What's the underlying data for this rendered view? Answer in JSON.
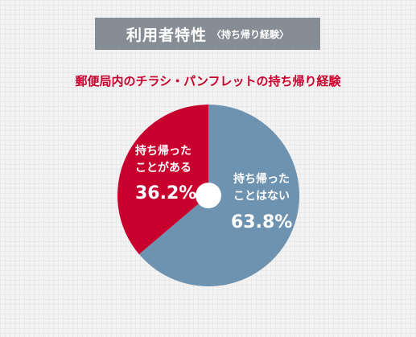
{
  "header": {
    "title": "利用者特性",
    "subtitle": "〈持ち帰り経験〉"
  },
  "chart_data": {
    "type": "pie",
    "title": "郵便局内のチラシ・パンフレットの持ち帰り経験",
    "categories": [
      "持ち帰った\nことはない",
      "持ち帰った\nことがある"
    ],
    "values": [
      63.8,
      36.2
    ],
    "value_labels": [
      "63.8%",
      "36.2%"
    ],
    "colors": [
      "#6d93b1",
      "#c8002d"
    ]
  }
}
